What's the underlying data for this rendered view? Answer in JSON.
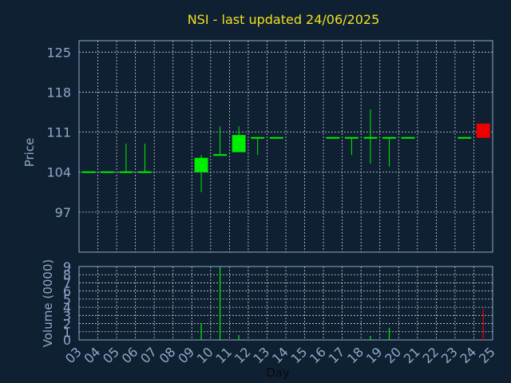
{
  "colors": {
    "background": "#0f2032",
    "frame": "#8fa8c8",
    "grid": "#c8d2dc",
    "title": "#f0e020",
    "tick_text": "#8fa8c8",
    "axis_label_price": "#8fa8c8",
    "axis_label_day": "#0a0a0a",
    "up": "#00ee00",
    "down": "#ee0000"
  },
  "chart_data": [
    {
      "type": "candlestick",
      "title": "NSI - last updated 24/06/2025",
      "ylabel": "Price",
      "ylim": [
        90,
        127
      ],
      "yticks": [
        97,
        104,
        111,
        118,
        125
      ],
      "xlim": [
        3,
        25
      ],
      "grid": true,
      "candles": [
        {
          "day": 3.5,
          "open": 104,
          "high": 104,
          "low": 104,
          "close": 104,
          "dir": "up"
        },
        {
          "day": 4.5,
          "open": 104,
          "high": 104,
          "low": 104,
          "close": 104,
          "dir": "up"
        },
        {
          "day": 5.5,
          "open": 104,
          "high": 109,
          "low": 104,
          "close": 104,
          "dir": "up"
        },
        {
          "day": 6.5,
          "open": 104,
          "high": 109,
          "low": 104,
          "close": 104,
          "dir": "up"
        },
        {
          "day": 9.5,
          "open": 104,
          "high": 107,
          "low": 100.5,
          "close": 106.5,
          "dir": "up"
        },
        {
          "day": 10.5,
          "open": 107,
          "high": 112,
          "low": 107,
          "close": 107,
          "dir": "up"
        },
        {
          "day": 11.5,
          "open": 107.5,
          "high": 112,
          "low": 107.5,
          "close": 110.5,
          "dir": "up"
        },
        {
          "day": 12.5,
          "open": 110,
          "high": 110,
          "low": 107,
          "close": 110,
          "dir": "up"
        },
        {
          "day": 13.5,
          "open": 110,
          "high": 110,
          "low": 110,
          "close": 110,
          "dir": "up"
        },
        {
          "day": 16.5,
          "open": 110,
          "high": 110,
          "low": 110,
          "close": 110,
          "dir": "up"
        },
        {
          "day": 17.5,
          "open": 110,
          "high": 110,
          "low": 107,
          "close": 110,
          "dir": "up"
        },
        {
          "day": 18.5,
          "open": 110,
          "high": 115,
          "low": 105.5,
          "close": 110,
          "dir": "up"
        },
        {
          "day": 19.5,
          "open": 110,
          "high": 110,
          "low": 105,
          "close": 110,
          "dir": "up"
        },
        {
          "day": 20.5,
          "open": 110,
          "high": 110,
          "low": 110,
          "close": 110,
          "dir": "up"
        },
        {
          "day": 23.5,
          "open": 110,
          "high": 110,
          "low": 110,
          "close": 110,
          "dir": "up"
        },
        {
          "day": 24.5,
          "open": 112.5,
          "high": 112.5,
          "low": 110,
          "close": 110,
          "dir": "down"
        }
      ]
    },
    {
      "type": "bar",
      "xlabel": "Day",
      "ylabel": "Volume (0000)",
      "ylim": [
        0,
        9
      ],
      "yticks": [
        0,
        1,
        2,
        3,
        4,
        5,
        6,
        7,
        8,
        9
      ],
      "xlim": [
        3,
        25
      ],
      "xticks": [
        "03",
        "04",
        "05",
        "06",
        "07",
        "08",
        "09",
        "10",
        "11",
        "12",
        "13",
        "14",
        "15",
        "16",
        "17",
        "18",
        "19",
        "20",
        "21",
        "22",
        "23",
        "24",
        "25"
      ],
      "grid": true,
      "bars": [
        {
          "day": 9.5,
          "value": 2,
          "dir": "up"
        },
        {
          "day": 10.5,
          "value": 9,
          "dir": "up"
        },
        {
          "day": 11.5,
          "value": 0.6,
          "dir": "up"
        },
        {
          "day": 18.5,
          "value": 0.5,
          "dir": "up"
        },
        {
          "day": 19.5,
          "value": 1.5,
          "dir": "up"
        },
        {
          "day": 24.5,
          "value": 3.8,
          "dir": "down"
        }
      ]
    }
  ]
}
